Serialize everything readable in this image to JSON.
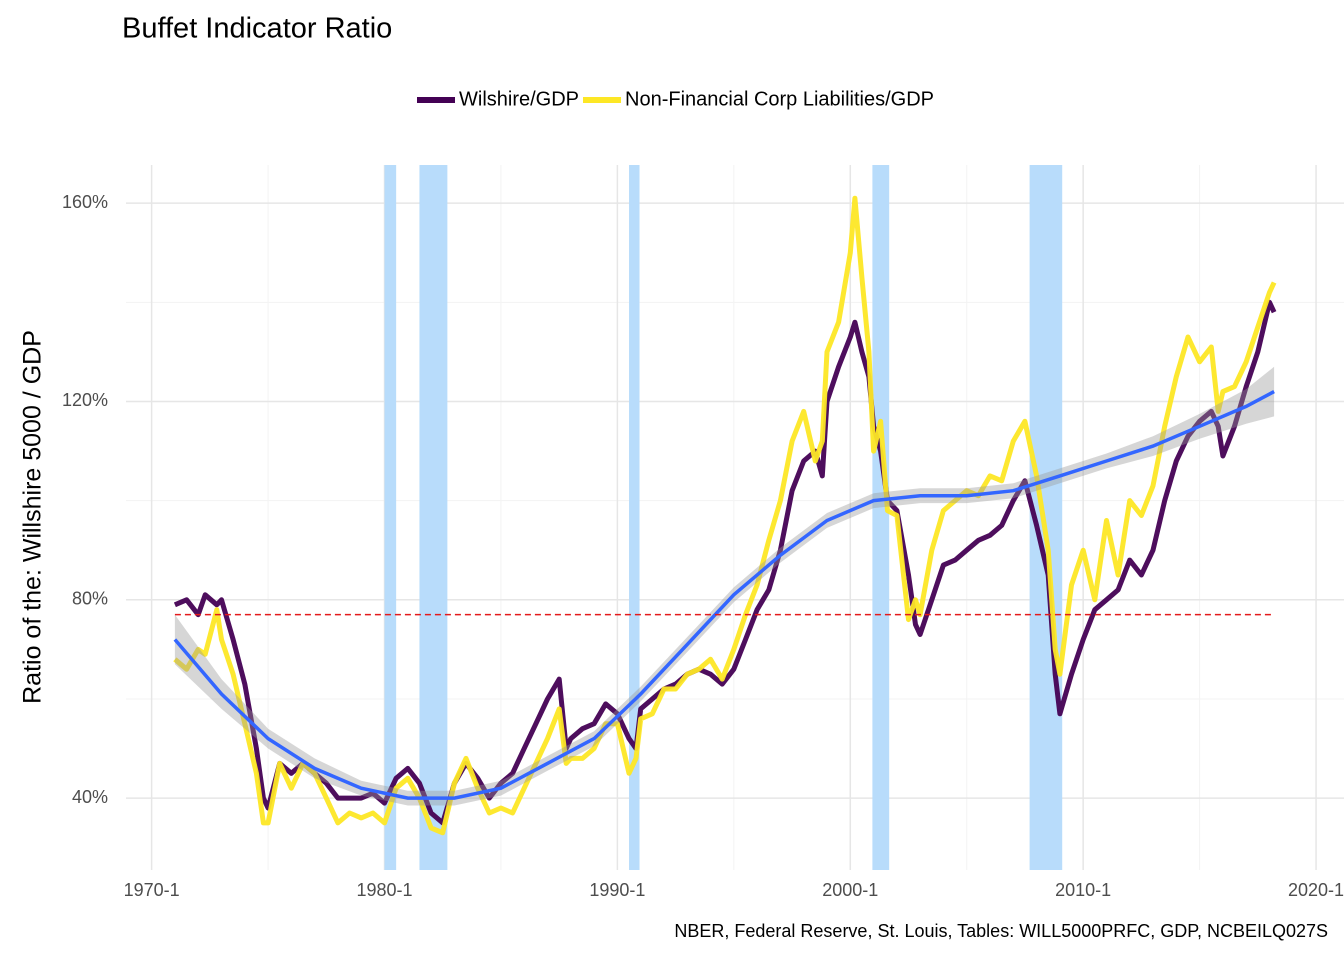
{
  "chart_data": {
    "type": "line",
    "title": "Buffet Indicator Ratio",
    "ylabel": "Ratio of the: Willshire 5000 / GDP",
    "caption": "NBER, Federal Reserve, St. Louis, Tables: WILL5000PRFC, GDP, NCBEILQ027S",
    "legend": "top",
    "grid": true,
    "xlim": [
      1968.9,
      2021.2
    ],
    "xticks": [
      {
        "value": 1970,
        "label": "1970-1"
      },
      {
        "value": 1980,
        "label": "1980-1"
      },
      {
        "value": 1990,
        "label": "1990-1"
      },
      {
        "value": 2000,
        "label": "2000-1"
      },
      {
        "value": 2010,
        "label": "2010-1"
      },
      {
        "value": 2020,
        "label": "2020-1"
      }
    ],
    "x_minor_ticks": [
      1975,
      1985,
      1995,
      2005,
      2015
    ],
    "ylim": [
      25.5,
      167.7
    ],
    "yticks": [
      {
        "value": 40,
        "label": "40%"
      },
      {
        "value": 80,
        "label": "80%"
      },
      {
        "value": 120,
        "label": "120%"
      },
      {
        "value": 160,
        "label": "160%"
      }
    ],
    "y_minor_ticks": [
      60,
      100,
      140
    ],
    "x": [
      1971,
      1971.5,
      1972,
      1972.3,
      1972.8,
      1973,
      1973.5,
      1974,
      1974.5,
      1974.8,
      1975,
      1975.5,
      1976,
      1976.5,
      1977,
      1977.5,
      1978,
      1978.5,
      1979,
      1979.5,
      1980,
      1980.5,
      1981,
      1981.5,
      1982,
      1982.5,
      1983,
      1983.5,
      1984,
      1984.5,
      1985,
      1985.5,
      1986,
      1986.5,
      1987,
      1987.5,
      1987.8,
      1988,
      1988.5,
      1989,
      1989.5,
      1990,
      1990.5,
      1990.8,
      1991,
      1991.5,
      1992,
      1992.5,
      1993,
      1993.5,
      1994,
      1994.5,
      1995,
      1995.5,
      1996,
      1996.5,
      1997,
      1997.5,
      1998,
      1998.5,
      1998.8,
      1999,
      1999.5,
      2000,
      2000.2,
      2000.5,
      2000.8,
      2001,
      2001.3,
      2001.6,
      2002,
      2002.5,
      2002.8,
      2003,
      2003.5,
      2004,
      2004.5,
      2005,
      2005.5,
      2006,
      2006.5,
      2007,
      2007.5,
      2008,
      2008.5,
      2008.8,
      2009,
      2009.5,
      2010,
      2010.5,
      2011,
      2011.5,
      2012,
      2012.5,
      2013,
      2013.5,
      2014,
      2014.5,
      2015,
      2015.5,
      2015.8,
      2016,
      2016.5,
      2017,
      2017.5,
      2018,
      2018.2
    ],
    "series": [
      {
        "name": "Wilshire/GDP",
        "color": "#440154",
        "values": [
          79,
          80,
          77,
          81,
          79,
          80,
          72,
          63,
          50,
          40,
          38,
          47,
          45,
          47,
          45,
          43,
          40,
          40,
          40,
          41,
          39,
          44,
          46,
          43,
          37,
          35,
          43,
          47,
          44,
          40,
          43,
          45,
          50,
          55,
          60,
          64,
          50,
          52,
          54,
          55,
          59,
          57,
          52,
          50,
          58,
          60,
          62,
          63,
          65,
          66,
          65,
          63,
          66,
          72,
          78,
          82,
          90,
          102,
          108,
          110,
          105,
          120,
          127,
          133,
          136,
          130,
          125,
          115,
          110,
          100,
          98,
          85,
          75,
          73,
          80,
          87,
          88,
          90,
          92,
          93,
          95,
          100,
          104,
          95,
          85,
          65,
          57,
          65,
          72,
          78,
          80,
          82,
          88,
          85,
          90,
          100,
          108,
          113,
          116,
          118,
          115,
          109,
          115,
          123,
          130,
          140,
          138
        ]
      },
      {
        "name": "Non-Financial Corp Liabilities/GDP",
        "color": "#FDE725",
        "values": [
          68,
          66,
          70,
          69,
          78,
          72,
          65,
          55,
          45,
          35,
          35,
          47,
          42,
          47,
          45,
          40,
          35,
          37,
          36,
          37,
          35,
          42,
          44,
          40,
          34,
          33,
          43,
          48,
          42,
          37,
          38,
          37,
          42,
          47,
          52,
          58,
          47,
          48,
          48,
          50,
          55,
          55,
          45,
          48,
          56,
          57,
          62,
          62,
          65,
          66,
          68,
          64,
          70,
          77,
          83,
          92,
          100,
          112,
          118,
          108,
          112,
          130,
          136,
          150,
          161,
          145,
          130,
          110,
          116,
          98,
          97,
          76,
          80,
          77,
          90,
          98,
          100,
          102,
          101,
          105,
          104,
          112,
          116,
          105,
          90,
          70,
          65,
          83,
          90,
          80,
          96,
          85,
          100,
          97,
          103,
          115,
          125,
          133,
          128,
          131,
          118,
          122,
          123,
          128,
          135,
          142,
          144
        ]
      }
    ],
    "smooth": {
      "color": "#3366FF",
      "x": [
        1971,
        1973,
        1975,
        1977,
        1979,
        1981,
        1983,
        1985,
        1987,
        1989,
        1991,
        1993,
        1995,
        1997,
        1999,
        2001,
        2003,
        2005,
        2007,
        2009,
        2011,
        2013,
        2015,
        2017,
        2018.2
      ],
      "values": [
        72,
        61,
        52,
        46,
        42,
        40,
        40,
        42,
        47,
        52,
        61,
        71,
        81,
        89,
        96,
        100,
        101,
        101,
        102,
        105,
        108,
        111,
        115,
        119,
        122
      ],
      "lower": [
        67,
        58,
        50,
        44,
        40.5,
        38.5,
        38.5,
        40.5,
        45.5,
        50.5,
        59.5,
        69.5,
        79.5,
        87.5,
        94.5,
        98.5,
        99.5,
        99.5,
        100.5,
        103.5,
        106.5,
        109,
        112.5,
        115.5,
        117
      ],
      "upper": [
        77,
        64,
        54,
        48,
        43.5,
        41.5,
        41.5,
        43.5,
        48.5,
        53.5,
        62.5,
        72.5,
        82.5,
        90.5,
        97.5,
        101.5,
        102.5,
        102.5,
        103.5,
        106.5,
        109.5,
        113,
        117.5,
        122.5,
        127
      ]
    },
    "recessions": [
      [
        1980.0,
        1980.5
      ],
      [
        1981.5,
        1982.7
      ],
      [
        1990.5,
        1990.95
      ],
      [
        2000.95,
        2001.67
      ],
      [
        2007.7,
        2009.1
      ]
    ],
    "recession_color": "#b8dcfb",
    "hline": {
      "value": 77,
      "xrange": [
        1971,
        2018.2
      ],
      "color": "#e31a1c"
    }
  }
}
